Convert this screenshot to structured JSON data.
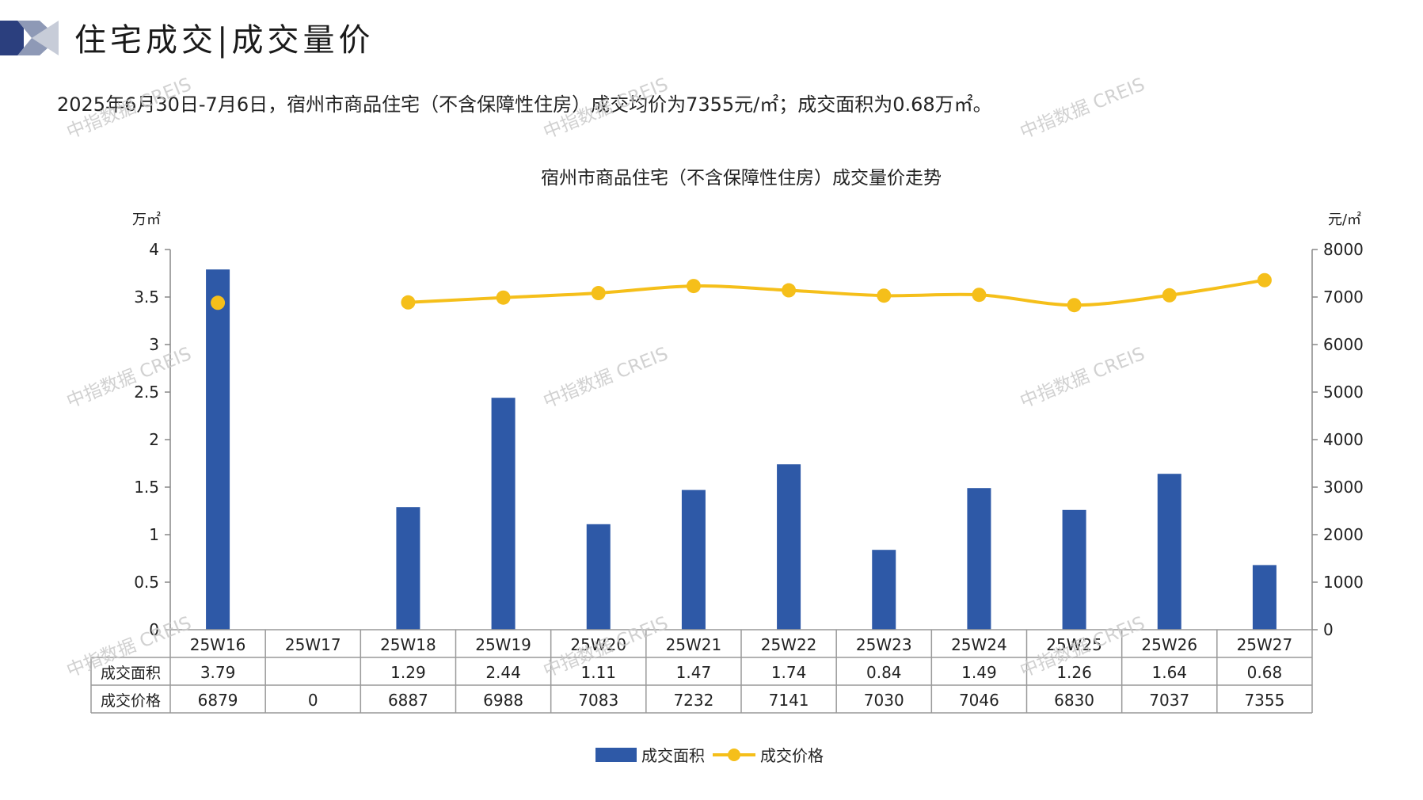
{
  "header": {
    "title": "住宅成交|成交量价",
    "summary": "2025年6月30日-7月6日，宿州市商品住宅（不含保障性住房）成交均价为7355元/㎡；成交面积为0.68万㎡。"
  },
  "watermark": "中指数据 CREIS",
  "colors": {
    "bar": "#2e59a7",
    "line": "#f5bf1a",
    "axis": "#888888",
    "table_border": "#999999"
  },
  "legend": {
    "bar_label": "成交面积",
    "line_label": "成交价格"
  },
  "chart_data": {
    "type": "bar+line",
    "title": "宿州市商品住宅（不含保障性住房）成交量价走势",
    "categories": [
      "25W16",
      "25W17",
      "25W18",
      "25W19",
      "25W20",
      "25W21",
      "25W22",
      "25W23",
      "25W24",
      "25W25",
      "25W26",
      "25W27"
    ],
    "y_left": {
      "unit": "万㎡",
      "min": 0,
      "max": 4,
      "ticks": [
        "0",
        "0.5",
        "1",
        "1.5",
        "2",
        "2.5",
        "3",
        "3.5",
        "4"
      ]
    },
    "y_right": {
      "unit": "元/㎡",
      "min": 0,
      "max": 8000,
      "ticks": [
        "0",
        "1000",
        "2000",
        "3000",
        "4000",
        "5000",
        "6000",
        "7000",
        "8000"
      ]
    },
    "series": [
      {
        "name": "成交面积",
        "type": "bar",
        "axis": "left",
        "values": [
          3.79,
          null,
          1.29,
          2.44,
          1.11,
          1.47,
          1.74,
          0.84,
          1.49,
          1.26,
          1.64,
          0.68
        ],
        "labels": [
          "3.79",
          "",
          "1.29",
          "2.44",
          "1.11",
          "1.47",
          "1.74",
          "0.84",
          "1.49",
          "1.26",
          "1.64",
          "0.68"
        ]
      },
      {
        "name": "成交价格",
        "type": "line",
        "axis": "right",
        "values": [
          6879,
          0,
          6887,
          6988,
          7083,
          7232,
          7141,
          7030,
          7046,
          6830,
          7037,
          7355
        ],
        "labels": [
          "6879",
          "0",
          "6887",
          "6988",
          "7083",
          "7232",
          "7141",
          "7030",
          "7046",
          "6830",
          "7037",
          "7355"
        ]
      }
    ],
    "grid": false,
    "data_table": true,
    "legend_position": "bottom-center"
  }
}
